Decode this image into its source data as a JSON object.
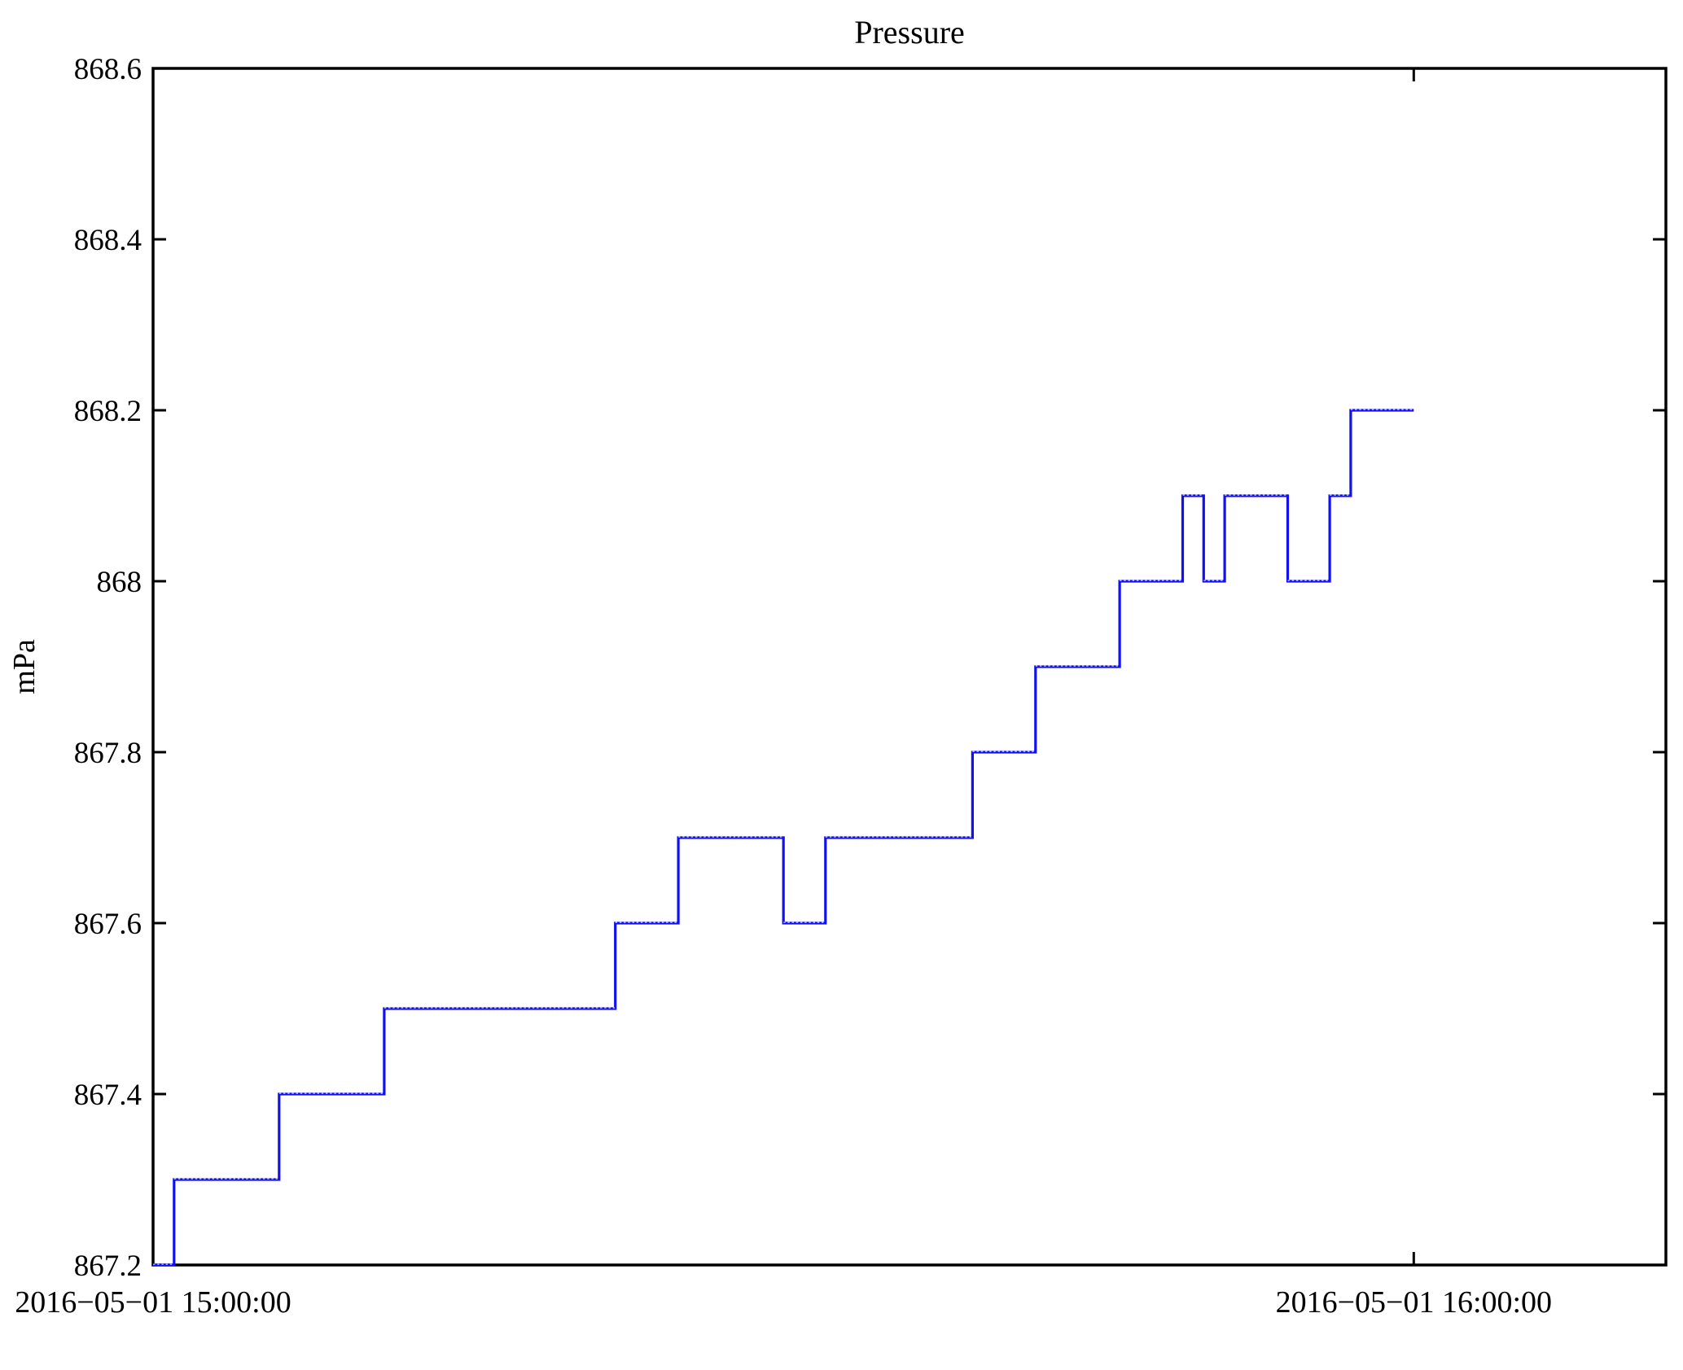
{
  "chart_data": {
    "type": "line",
    "subtype": "step-post",
    "title": "Pressure",
    "xlabel": "",
    "ylabel": "mPa",
    "line_color": "#1010f0",
    "axis_color": "#000000",
    "background_color": "#ffffff",
    "grid": false,
    "legend": false,
    "x_unit": "minutes after 2016-05-01 15:00:00",
    "xlim": [
      0,
      72
    ],
    "ylim": [
      867.2,
      868.6
    ],
    "points": [
      [
        0,
        867.2
      ],
      [
        1,
        867.3
      ],
      [
        6,
        867.4
      ],
      [
        11,
        867.5
      ],
      [
        22,
        867.6
      ],
      [
        25,
        867.7
      ],
      [
        30,
        867.6
      ],
      [
        32,
        867.7
      ],
      [
        39,
        867.8
      ],
      [
        42,
        867.9
      ],
      [
        46,
        868.0
      ],
      [
        49,
        868.1
      ],
      [
        50,
        868.0
      ],
      [
        51,
        868.1
      ],
      [
        54,
        868.0
      ],
      [
        56,
        868.1
      ],
      [
        57,
        868.2
      ],
      [
        60,
        868.2
      ]
    ],
    "xticks": [
      {
        "t": 0,
        "label": "2016−05−01 15:00:00"
      },
      {
        "t": 60,
        "label": "2016−05−01 16:00:00"
      }
    ],
    "yticks": [
      {
        "v": 867.2,
        "label": "867.2"
      },
      {
        "v": 867.4,
        "label": "867.4"
      },
      {
        "v": 867.6,
        "label": "867.6"
      },
      {
        "v": 867.8,
        "label": "867.8"
      },
      {
        "v": 868.0,
        "label": "868"
      },
      {
        "v": 868.2,
        "label": "868.2"
      },
      {
        "v": 868.4,
        "label": "868.4"
      },
      {
        "v": 868.6,
        "label": "868.6"
      }
    ]
  }
}
